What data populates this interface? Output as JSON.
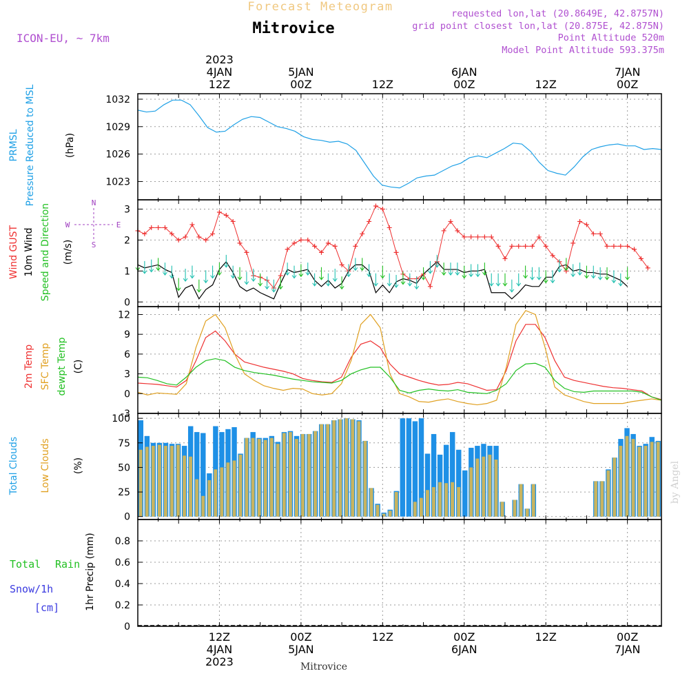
{
  "header": {
    "top_title": "Forecast Meteogram",
    "station": "Mitrovice",
    "model": "ICON-EU, ~ 7km",
    "info": [
      "requested lon,lat (20.8649E, 42.8757N)",
      "grid point closest lon,lat (20.875E, 42.875N)",
      "Point Altitude 520m",
      "Model Point Altitude 593.375m"
    ]
  },
  "footer": {
    "station": "Mitrovice",
    "watermark": "by Angel"
  },
  "time_axis": {
    "top": [
      {
        "x": 12,
        "lines": [
          "2023",
          "4JAN",
          "12Z"
        ]
      },
      {
        "x": 24,
        "lines": [
          "5JAN",
          "00Z"
        ]
      },
      {
        "x": 36,
        "lines": [
          "12Z"
        ]
      },
      {
        "x": 48,
        "lines": [
          "6JAN",
          "00Z"
        ]
      },
      {
        "x": 60,
        "lines": [
          "12Z"
        ]
      },
      {
        "x": 72,
        "lines": [
          "7JAN",
          "00Z"
        ]
      }
    ],
    "bottom": [
      {
        "x": 12,
        "lines": [
          "12Z",
          "4JAN",
          "2023"
        ]
      },
      {
        "x": 24,
        "lines": [
          "00Z",
          "5JAN"
        ]
      },
      {
        "x": 36,
        "lines": [
          "12Z"
        ]
      },
      {
        "x": 48,
        "lines": [
          "00Z",
          "6JAN"
        ]
      },
      {
        "x": 60,
        "lines": [
          "12Z"
        ]
      },
      {
        "x": 72,
        "lines": [
          "00Z",
          "7JAN"
        ]
      }
    ]
  },
  "colors": {
    "pressure": "#1ea0e6",
    "gust": "#ee3030",
    "wind": "#000000",
    "wind_dir": "#22c022",
    "temp": "#ee3030",
    "sfc": "#e0a020",
    "dewpt": "#22c022",
    "total_clouds": "#1e90e6",
    "low_clouds": "#c8b460",
    "rain": "#22c022",
    "snow": "#3a3ae0",
    "compass": "#a040c0"
  },
  "chart_data": [
    {
      "type": "line",
      "panel": "pressure",
      "ylabel": [
        "PRMSL",
        "Pressure Reduced to MSL",
        "(hPa)"
      ],
      "yticks": [
        1023,
        1026,
        1029,
        1032
      ],
      "ylim": [
        1021,
        1032.6
      ],
      "xlim": [
        0,
        77
      ],
      "series": [
        {
          "values": [
            1030.8,
            1030.6,
            1030.7,
            1031.4,
            1031.9,
            1031.9,
            1031.4,
            1030.2,
            1028.9,
            1028.4,
            1028.5,
            1029.2,
            1029.8,
            1030.1,
            1030.0,
            1029.5,
            1029.0,
            1028.8,
            1028.5,
            1027.9,
            1027.6,
            1027.5,
            1027.3,
            1027.4,
            1027.1,
            1026.4,
            1025.0,
            1023.6,
            1022.6,
            1022.4,
            1022.3,
            1022.8,
            1023.4,
            1023.6,
            1023.7,
            1024.2,
            1024.7,
            1025.0,
            1025.6,
            1025.8,
            1025.6,
            1026.1,
            1026.6,
            1027.2,
            1027.1,
            1026.3,
            1025.1,
            1024.2,
            1023.9,
            1023.7,
            1024.6,
            1025.7,
            1026.5,
            1026.8,
            1027.0,
            1027.1,
            1026.9,
            1026.9,
            1026.5,
            1026.6,
            1026.5
          ]
        }
      ]
    },
    {
      "type": "line",
      "panel": "wind",
      "ylabel": [
        "Wind GUST",
        "10m Wind",
        "Speed and Direction",
        "(m/s)"
      ],
      "compass": {
        "n": "N",
        "e": "E",
        "s": "S",
        "w": "W"
      },
      "yticks": [
        0,
        1,
        2,
        3
      ],
      "ylim": [
        -0.15,
        3.3
      ],
      "xlim": [
        0,
        77
      ],
      "gust": [
        2.3,
        2.2,
        2.4,
        2.4,
        2.4,
        2.2,
        2.0,
        2.1,
        2.5,
        2.1,
        2.0,
        2.2,
        2.9,
        2.8,
        2.6,
        1.9,
        1.6,
        0.85,
        0.8,
        0.7,
        0.45,
        0.85,
        1.7,
        1.9,
        2.0,
        2.0,
        1.8,
        1.6,
        1.9,
        1.8,
        1.2,
        1.0,
        1.8,
        2.2,
        2.6,
        3.1,
        3.0,
        2.4,
        1.6,
        0.9,
        0.75,
        0.75,
        0.9,
        0.5,
        1.3,
        2.3,
        2.6,
        2.3,
        2.1,
        2.1,
        2.1,
        2.1,
        2.1,
        1.8,
        1.4,
        1.8,
        1.8,
        1.8,
        1.8,
        2.1,
        1.8,
        1.5,
        1.3,
        1.0,
        1.9,
        2.6,
        2.5,
        2.2,
        2.2,
        1.8,
        1.8,
        1.8,
        1.8,
        1.7,
        1.4,
        1.1
      ],
      "wind": [
        1.2,
        1.1,
        1.15,
        1.2,
        1.05,
        0.95,
        0.15,
        0.45,
        0.55,
        0.1,
        0.4,
        0.55,
        1.05,
        1.3,
        0.95,
        0.5,
        0.35,
        0.45,
        0.3,
        0.2,
        0.1,
        0.6,
        1.05,
        0.95,
        1.0,
        1.05,
        0.7,
        0.5,
        0.7,
        0.45,
        0.6,
        1.0,
        1.2,
        1.2,
        1.0,
        0.3,
        0.55,
        0.3,
        0.65,
        0.75,
        0.7,
        0.6,
        0.9,
        1.1,
        1.3,
        1.05,
        1.05,
        1.05,
        0.95,
        1.0,
        1.0,
        1.05,
        0.3,
        0.3,
        0.3,
        0.1,
        0.3,
        0.55,
        0.5,
        0.5,
        0.8,
        0.8,
        1.15,
        1.2,
        1.0,
        1.05,
        0.95,
        0.95,
        0.9,
        0.9,
        0.8,
        0.7,
        0.5
      ]
    },
    {
      "type": "line",
      "panel": "temperature",
      "ylabel": [
        "2m Temp",
        "SFC Temp",
        "dewpt Temp",
        "(C)"
      ],
      "yticks": [
        -3,
        0,
        3,
        6,
        9,
        12
      ],
      "ylim": [
        -3,
        13.2
      ],
      "xlim": [
        0,
        77
      ],
      "series": [
        {
          "name": "2m Temp",
          "values": [
            1.6,
            1.5,
            1.4,
            1.2,
            1.0,
            2.0,
            5.0,
            8.5,
            9.5,
            8.0,
            6.0,
            4.8,
            4.4,
            4.0,
            3.7,
            3.4,
            3.0,
            2.3,
            2.0,
            1.8,
            1.7,
            2.5,
            5.5,
            7.5,
            8.0,
            7.0,
            4.5,
            3.0,
            2.5,
            2.0,
            1.6,
            1.3,
            1.4,
            1.7,
            1.5,
            1.0,
            0.5,
            0.6,
            3.5,
            8.0,
            10.5,
            10.5,
            8.5,
            5.0,
            2.5,
            2.0,
            1.7,
            1.4,
            1.1,
            0.9,
            0.8,
            0.6,
            0.4,
            -0.5,
            -0.9
          ]
        },
        {
          "name": "SFC Temp",
          "values": [
            0.2,
            -0.2,
            0.1,
            0.0,
            -0.1,
            1.5,
            7.0,
            11.0,
            12.0,
            10.0,
            6.0,
            3.0,
            2.0,
            1.2,
            0.8,
            0.5,
            0.8,
            0.7,
            0.0,
            -0.2,
            0.0,
            1.5,
            5.0,
            10.5,
            12.0,
            10.0,
            3.0,
            0.0,
            -0.5,
            -1.2,
            -1.3,
            -1.0,
            -0.8,
            -1.2,
            -1.5,
            -1.7,
            -1.5,
            -1.0,
            4.0,
            10.5,
            12.6,
            12.0,
            7.0,
            1.0,
            -0.2,
            -0.7,
            -1.2,
            -1.5,
            -1.5,
            -1.5,
            -1.5,
            -1.2,
            -1.0,
            -0.8,
            -1.0
          ]
        },
        {
          "name": "dewpt Temp",
          "values": [
            2.5,
            2.4,
            2.0,
            1.5,
            1.3,
            2.5,
            4.0,
            5.0,
            5.3,
            5.0,
            4.0,
            3.5,
            3.2,
            3.0,
            2.8,
            2.5,
            2.2,
            2.0,
            1.8,
            1.7,
            1.6,
            2.0,
            3.0,
            3.6,
            4.0,
            4.0,
            2.5,
            0.5,
            0.1,
            0.5,
            0.7,
            0.5,
            0.4,
            0.6,
            0.2,
            0.1,
            0.0,
            0.5,
            1.5,
            3.5,
            4.5,
            4.6,
            4.0,
            2.0,
            0.8,
            0.3,
            0.2,
            0.4,
            0.4,
            0.4,
            0.4,
            0.4,
            0.2,
            -0.5,
            -1.0
          ]
        }
      ]
    },
    {
      "type": "bar",
      "panel": "clouds",
      "ylabel": [
        "Total Clouds",
        "Low Clouds",
        "(%)"
      ],
      "yticks": [
        0,
        25,
        50,
        75,
        100
      ],
      "ylim": [
        -3,
        105
      ],
      "xlim": [
        0,
        77
      ],
      "total": [
        98,
        82,
        75,
        75,
        75,
        74,
        74,
        72,
        92,
        86,
        85,
        44,
        92,
        86,
        89,
        91,
        64,
        80,
        86,
        80,
        80,
        82,
        76,
        86,
        87,
        82,
        84,
        84,
        87,
        94,
        94,
        98,
        99,
        100,
        99,
        98,
        77,
        29,
        13,
        4,
        7,
        26,
        100,
        100,
        97,
        100,
        64,
        84,
        63,
        73,
        86,
        68,
        47,
        70,
        72,
        74,
        72,
        72,
        15,
        0,
        17,
        33,
        8,
        33,
        0,
        0,
        0,
        0,
        0,
        0,
        0,
        0,
        0,
        36,
        36,
        48,
        60,
        79,
        90,
        84,
        72,
        74,
        81,
        77
      ],
      "low": [
        68,
        71,
        72,
        73,
        72,
        72,
        73,
        62,
        61,
        38,
        21,
        37,
        48,
        50,
        55,
        57,
        63,
        80,
        80,
        79,
        78,
        80,
        74,
        85,
        86,
        79,
        84,
        84,
        87,
        94,
        94,
        98,
        99,
        100,
        99,
        97,
        77,
        29,
        12,
        3,
        6,
        25,
        0,
        0,
        15,
        19,
        27,
        30,
        35,
        34,
        35,
        30,
        0,
        50,
        59,
        61,
        63,
        58,
        15,
        0,
        17,
        33,
        8,
        33,
        0,
        0,
        0,
        0,
        0,
        0,
        0,
        0,
        0,
        36,
        36,
        47,
        60,
        72,
        82,
        79,
        71,
        72,
        76,
        76
      ]
    },
    {
      "type": "bar",
      "panel": "precip",
      "ylabel": [
        "1hr Precip (mm)"
      ],
      "legend": [
        "Total",
        "Rain",
        "Snow/1h",
        "[cm]"
      ],
      "yticks": [
        0,
        0.2,
        0.4,
        0.6,
        0.8
      ],
      "ylim": [
        0,
        1.0
      ],
      "xlim": [
        0,
        77
      ],
      "values": []
    }
  ]
}
